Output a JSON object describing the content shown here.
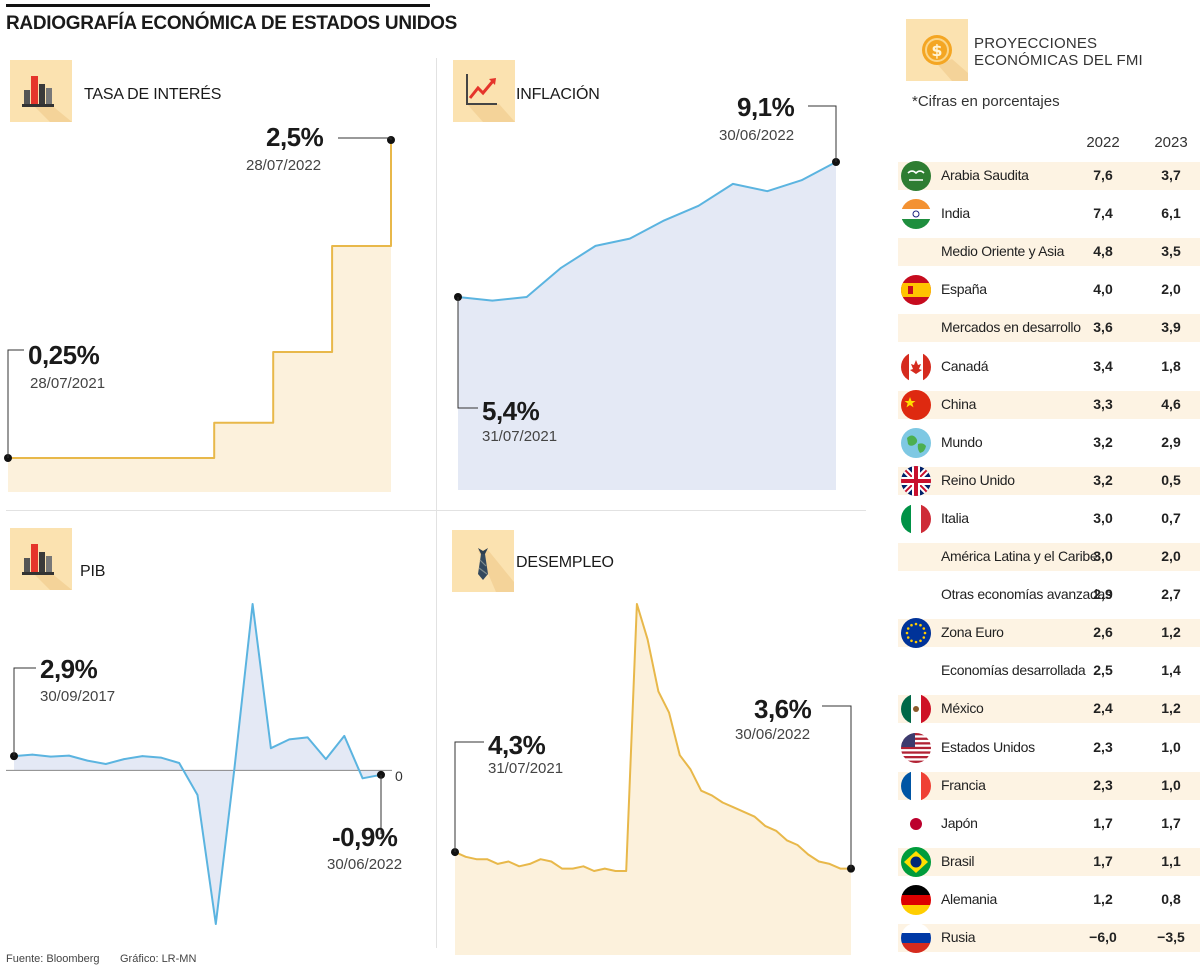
{
  "title": "RADIOGRAFÍA ECONÓMICA DE ESTADOS UNIDOS",
  "footer": {
    "source": "Fuente: Bloomberg",
    "graphic": "Gráfico: LR-MN"
  },
  "colors": {
    "gold": "#e8b84a",
    "gold_fill": "#fcf1dc",
    "blue": "#5bb4e0",
    "blue_fill": "#e4e9f5",
    "row_shade": "#fdf3e3",
    "icon_bg": "#fbe2b0"
  },
  "chart_data": [
    {
      "id": "rate",
      "type": "line",
      "title": "TASA DE INTERÉS",
      "icon": "bar-chart-icon",
      "values": [
        0.25,
        0.25,
        0.25,
        0.25,
        0.25,
        0.25,
        0.25,
        0.5,
        0.5,
        1.0,
        1.0,
        1.75,
        1.75,
        2.5
      ],
      "step": true,
      "ylim": [
        0.25,
        2.5
      ],
      "start": {
        "value": "0,25%",
        "date": "28/07/2021"
      },
      "end": {
        "value": "2,5%",
        "date": "28/07/2022"
      }
    },
    {
      "id": "inflation",
      "type": "area",
      "title": "INFLACIÓN",
      "icon": "trend-up-icon",
      "values": [
        5.4,
        5.3,
        5.4,
        6.2,
        6.8,
        7.0,
        7.5,
        7.9,
        8.5,
        8.3,
        8.6,
        9.1
      ],
      "ylim": [
        5.4,
        9.1
      ],
      "start": {
        "value": "5,4%",
        "date": "31/07/2021"
      },
      "end": {
        "value": "9,1%",
        "date": "30/06/2022"
      }
    },
    {
      "id": "gdp",
      "type": "area",
      "title": "PIB",
      "icon": "bar-chart-icon",
      "values": [
        2.9,
        3.2,
        2.8,
        3.0,
        2.0,
        1.3,
        2.3,
        2.9,
        2.6,
        1.5,
        -5.0,
        -31.2,
        0,
        33.8,
        4.5,
        6.3,
        6.7,
        2.3,
        7.0,
        -1.6,
        -0.9
      ],
      "ylim": [
        -31.2,
        33.8
      ],
      "zero_label": "0",
      "start": {
        "value": "2,9%",
        "date": "30/09/2017"
      },
      "end": {
        "value": "-0,9%",
        "date": "30/06/2022"
      }
    },
    {
      "id": "unemployment",
      "type": "area",
      "title": "DESEMPLEO",
      "icon": "tie-icon",
      "values": [
        4.3,
        4.1,
        4.0,
        4.0,
        3.8,
        3.9,
        3.7,
        3.8,
        4.0,
        3.9,
        3.6,
        3.6,
        3.7,
        3.5,
        3.6,
        3.5,
        3.5,
        14.8,
        13.3,
        11.1,
        10.2,
        8.4,
        7.8,
        6.9,
        6.7,
        6.4,
        6.2,
        6.0,
        5.8,
        5.4,
        5.2,
        4.8,
        4.6,
        4.2,
        3.9,
        3.8,
        3.6,
        3.6
      ],
      "ylim": [
        3.5,
        14.8
      ],
      "start": {
        "value": "4,3%",
        "date": "31/07/2021"
      },
      "end": {
        "value": "3,6%",
        "date": "30/06/2022"
      }
    }
  ],
  "projections": {
    "title_line1": "PROYECCIONES",
    "title_line2": "ECONÓMICAS DEL FMI",
    "icon": "coin-dollar-icon",
    "note": "*Cifras en porcentajes",
    "year1": "2022",
    "year2": "2023",
    "rows": [
      {
        "name": "Arabia Saudita",
        "v2022": "7,6",
        "v2023": "3,7",
        "flag": "saudi-arabia-flag-icon"
      },
      {
        "name": "India",
        "v2022": "7,4",
        "v2023": "6,1",
        "flag": "india-flag-icon"
      },
      {
        "name": "Medio Oriente y Asia",
        "v2022": "4,8",
        "v2023": "3,5",
        "flag": ""
      },
      {
        "name": "España",
        "v2022": "4,0",
        "v2023": "2,0",
        "flag": "spain-flag-icon"
      },
      {
        "name": "Mercados en desarrollo",
        "v2022": "3,6",
        "v2023": "3,9",
        "flag": ""
      },
      {
        "name": "Canadá",
        "v2022": "3,4",
        "v2023": "1,8",
        "flag": "canada-flag-icon"
      },
      {
        "name": "China",
        "v2022": "3,3",
        "v2023": "4,6",
        "flag": "china-flag-icon"
      },
      {
        "name": "Mundo",
        "v2022": "3,2",
        "v2023": "2,9",
        "flag": "globe-icon"
      },
      {
        "name": "Reino Unido",
        "v2022": "3,2",
        "v2023": "0,5",
        "flag": "uk-flag-icon"
      },
      {
        "name": "Italia",
        "v2022": "3,0",
        "v2023": "0,7",
        "flag": "italy-flag-icon"
      },
      {
        "name": "América Latina y el Caribe",
        "v2022": "3,0",
        "v2023": "2,0",
        "flag": ""
      },
      {
        "name": "Otras economías avanzadas",
        "v2022": "2,9",
        "v2023": "2,7",
        "flag": ""
      },
      {
        "name": "Zona Euro",
        "v2022": "2,6",
        "v2023": "1,2",
        "flag": "eu-flag-icon"
      },
      {
        "name": "Economías desarrollada",
        "v2022": "2,5",
        "v2023": "1,4",
        "flag": ""
      },
      {
        "name": "México",
        "v2022": "2,4",
        "v2023": "1,2",
        "flag": "mexico-flag-icon"
      },
      {
        "name": "Estados Unidos",
        "v2022": "2,3",
        "v2023": "1,0",
        "flag": "usa-flag-icon"
      },
      {
        "name": "Francia",
        "v2022": "2,3",
        "v2023": "1,0",
        "flag": "france-flag-icon"
      },
      {
        "name": "Japón",
        "v2022": "1,7",
        "v2023": "1,7",
        "flag": "japan-flag-icon"
      },
      {
        "name": "Brasil",
        "v2022": "1,7",
        "v2023": "1,1",
        "flag": "brazil-flag-icon"
      },
      {
        "name": "Alemania",
        "v2022": "1,2",
        "v2023": "0,8",
        "flag": "germany-flag-icon"
      },
      {
        "name": "Rusia",
        "v2022": "−6,0",
        "v2023": "−3,5",
        "flag": "russia-flag-icon"
      }
    ]
  }
}
